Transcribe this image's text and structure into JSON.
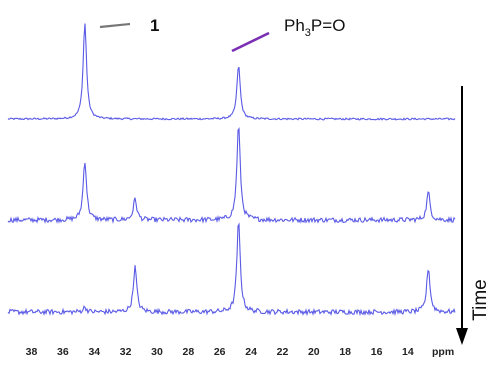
{
  "chart_data": {
    "type": "line",
    "x_axis": {
      "unit_label": "ppm",
      "reversed": true,
      "range": [
        39.5,
        11.0
      ],
      "ticks": [
        38,
        36,
        34,
        32,
        30,
        28,
        26,
        24,
        22,
        20,
        18,
        16,
        14
      ],
      "tick_labels": [
        "38",
        "36",
        "34",
        "32",
        "30",
        "28",
        "26",
        "24",
        "22",
        "20",
        "18",
        "16",
        "14"
      ]
    },
    "series": [
      {
        "peaks": [
          {
            "ppm": 34.6,
            "intensity": 1.0
          },
          {
            "ppm": 24.8,
            "intensity": 0.56
          }
        ]
      },
      {
        "peaks": [
          {
            "ppm": 34.6,
            "intensity": 0.62
          },
          {
            "ppm": 31.4,
            "intensity": 0.22
          },
          {
            "ppm": 24.8,
            "intensity": 0.99
          },
          {
            "ppm": 12.7,
            "intensity": 0.29
          }
        ]
      },
      {
        "peaks": [
          {
            "ppm": 34.6,
            "intensity": 0.05
          },
          {
            "ppm": 31.4,
            "intensity": 0.47
          },
          {
            "ppm": 24.8,
            "intensity": 0.94
          },
          {
            "ppm": 12.7,
            "intensity": 0.46
          }
        ]
      }
    ],
    "annotations": [
      {
        "label": "1",
        "points_to_ppm": 34.6
      },
      {
        "label_parts": [
          "Ph",
          "3",
          "P=O"
        ],
        "points_to_ppm": 24.8
      }
    ],
    "arrow_label": "Time",
    "grid": false,
    "legend": "none"
  },
  "colors": {
    "spectrum": "#5a5ae6",
    "annotation_line_1": "#777777",
    "annotation_line_2": "#7a2fb5",
    "arrow": "#000000",
    "text": "#111111"
  }
}
